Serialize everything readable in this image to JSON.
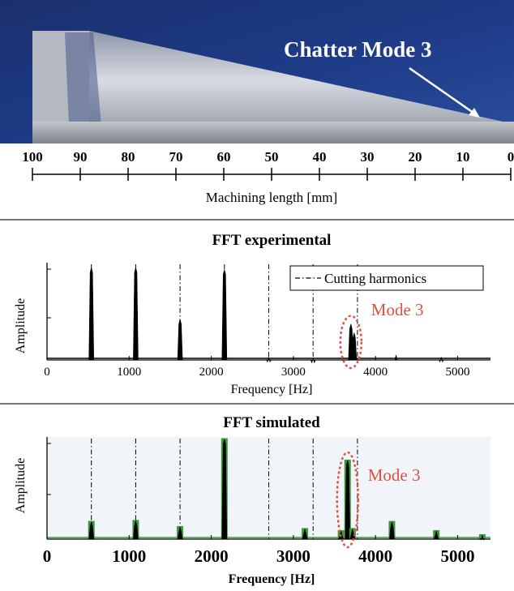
{
  "photo": {
    "caption": "Chatter Mode 3",
    "colors": {
      "sky": "#1f3d8a",
      "metal": "#c9ccd4",
      "caption": "#ffffff"
    }
  },
  "ruler": {
    "ticks": [
      "100",
      "90",
      "80",
      "70",
      "60",
      "50",
      "40",
      "30",
      "20",
      "10",
      "0"
    ],
    "label": "Machining length [mm]"
  },
  "chart_data": [
    {
      "type": "line",
      "title": "FFT experimental",
      "xlabel": "Frequency [Hz]",
      "ylabel": "Amplitude",
      "xlim": [
        0,
        5400
      ],
      "xticks": [
        0,
        1000,
        2000,
        3000,
        4000,
        5000
      ],
      "ylim": [
        0,
        1
      ],
      "grid": false,
      "legend": {
        "placement": "top-right",
        "entries": [
          "Cutting harmonics"
        ]
      },
      "cutting_harmonics": [
        540,
        1080,
        1620,
        2160,
        2700,
        3240,
        3780
      ],
      "series": [
        {
          "color": "#000000",
          "peaks": [
            {
              "x": 540,
              "y": 0.95
            },
            {
              "x": 1080,
              "y": 0.95
            },
            {
              "x": 1620,
              "y": 0.42
            },
            {
              "x": 2160,
              "y": 0.93
            },
            {
              "x": 2700,
              "y": 0.03
            },
            {
              "x": 3240,
              "y": 0.02
            },
            {
              "x": 3700,
              "y": 0.37
            },
            {
              "x": 3740,
              "y": 0.28
            },
            {
              "x": 4250,
              "y": 0.05
            },
            {
              "x": 4800,
              "y": 0.03
            }
          ]
        }
      ],
      "annotation": {
        "text": "Mode 3",
        "x": 3700,
        "color": "#e05040"
      }
    },
    {
      "type": "line",
      "title": "FFT simulated",
      "xlabel": "Frequency [Hz]",
      "ylabel": "Amplitude",
      "xlim": [
        0,
        5400
      ],
      "xticks": [
        0,
        1000,
        2000,
        3000,
        4000,
        5000
      ],
      "ylim": [
        0,
        1
      ],
      "grid": false,
      "cutting_harmonics": [
        540,
        1080,
        1620,
        2160,
        2700,
        3240,
        3780
      ],
      "series": [
        {
          "color": "#000000",
          "fill": "#3a9a3a",
          "peaks": [
            {
              "x": 540,
              "y": 0.17
            },
            {
              "x": 1080,
              "y": 0.18
            },
            {
              "x": 1620,
              "y": 0.12
            },
            {
              "x": 2160,
              "y": 0.98
            },
            {
              "x": 3140,
              "y": 0.1
            },
            {
              "x": 3580,
              "y": 0.08
            },
            {
              "x": 3660,
              "y": 0.77
            },
            {
              "x": 3720,
              "y": 0.1
            },
            {
              "x": 4200,
              "y": 0.17
            },
            {
              "x": 4740,
              "y": 0.08
            },
            {
              "x": 5300,
              "y": 0.04
            }
          ]
        }
      ],
      "annotation": {
        "text": "Mode 3",
        "x": 3660,
        "color": "#e05040"
      }
    }
  ]
}
